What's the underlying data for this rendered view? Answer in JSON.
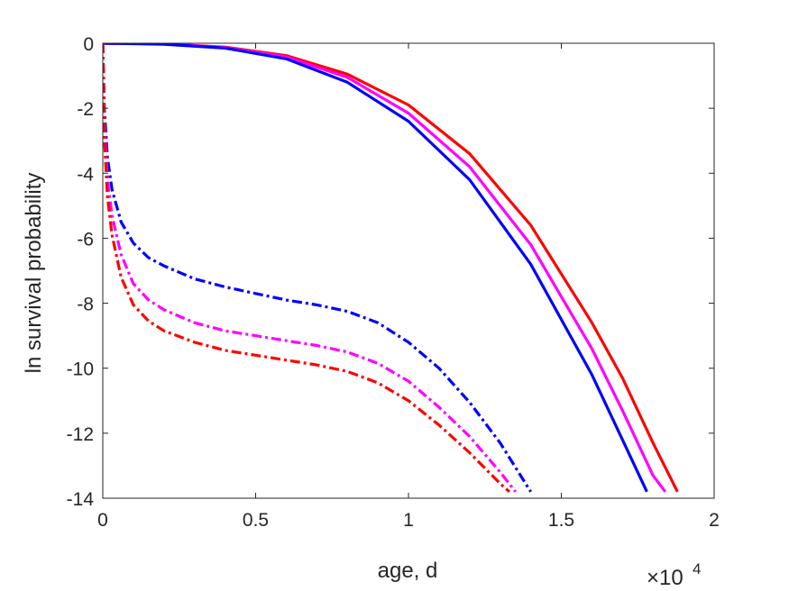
{
  "chart_data": {
    "type": "line",
    "xlabel": "age, d",
    "ylabel": "ln survival probability",
    "x_multiplier": "×10",
    "x_multiplier_exponent": "4",
    "xlim": [
      0,
      20000
    ],
    "ylim": [
      -14,
      0
    ],
    "xticks": [
      0,
      5000,
      10000,
      15000,
      20000
    ],
    "xtick_labels": [
      "0",
      "0.5",
      "1",
      "1.5",
      "2"
    ],
    "yticks": [
      0,
      -2,
      -4,
      -6,
      -8,
      -10,
      -12,
      -14
    ],
    "ytick_labels": [
      "0",
      "-2",
      "-4",
      "-6",
      "-8",
      "-10",
      "-12",
      "-14"
    ],
    "grid": false,
    "series": [
      {
        "color": "#ff0000",
        "style": "solid",
        "x": [
          0,
          2000,
          4000,
          6000,
          8000,
          10000,
          12000,
          14000,
          16000,
          17000,
          18000,
          18800
        ],
        "y": [
          0,
          -0.02,
          -0.12,
          -0.38,
          -0.95,
          -1.9,
          -3.4,
          -5.6,
          -8.6,
          -10.3,
          -12.3,
          -13.8
        ]
      },
      {
        "color": "#ff00ff",
        "style": "solid",
        "x": [
          0,
          2000,
          4000,
          6000,
          8000,
          10000,
          12000,
          14000,
          16000,
          17000,
          18000,
          18400
        ],
        "y": [
          0,
          -0.02,
          -0.13,
          -0.42,
          -1.05,
          -2.15,
          -3.8,
          -6.2,
          -9.4,
          -11.3,
          -13.3,
          -13.8
        ]
      },
      {
        "color": "#0000ff",
        "style": "solid",
        "x": [
          0,
          2000,
          4000,
          6000,
          8000,
          10000,
          12000,
          14000,
          16000,
          17000,
          17800
        ],
        "y": [
          0,
          -0.03,
          -0.15,
          -0.48,
          -1.2,
          -2.4,
          -4.2,
          -6.8,
          -10.2,
          -12.2,
          -13.8
        ]
      },
      {
        "color": "#0000ff",
        "style": "dashdot",
        "x": [
          0,
          50,
          150,
          300,
          600,
          1000,
          1500,
          2000,
          3000,
          4000,
          5000,
          6000,
          7000,
          8000,
          9000,
          10000,
          11000,
          12000,
          13000,
          14000
        ],
        "y": [
          0,
          -2.0,
          -3.5,
          -4.5,
          -5.5,
          -6.15,
          -6.6,
          -6.85,
          -7.25,
          -7.5,
          -7.7,
          -7.9,
          -8.05,
          -8.25,
          -8.6,
          -9.2,
          -10.0,
          -11.05,
          -12.3,
          -13.8
        ]
      },
      {
        "color": "#ff00ff",
        "style": "dashdot",
        "x": [
          0,
          50,
          150,
          300,
          600,
          1000,
          1500,
          2000,
          3000,
          4000,
          5000,
          6000,
          7000,
          8000,
          9000,
          10000,
          11000,
          12000,
          13000,
          13500
        ],
        "y": [
          0,
          -2.5,
          -4.2,
          -5.3,
          -6.5,
          -7.4,
          -7.9,
          -8.2,
          -8.6,
          -8.85,
          -9.0,
          -9.15,
          -9.3,
          -9.5,
          -9.85,
          -10.4,
          -11.2,
          -12.1,
          -13.2,
          -13.8
        ]
      },
      {
        "color": "#ff0000",
        "style": "dashdot",
        "x": [
          0,
          50,
          150,
          300,
          600,
          1000,
          1500,
          2000,
          3000,
          4000,
          5000,
          6000,
          7000,
          8000,
          9000,
          10000,
          11000,
          12000,
          13000,
          13300
        ],
        "y": [
          0,
          -2.9,
          -4.7,
          -5.9,
          -7.2,
          -8.05,
          -8.55,
          -8.85,
          -9.2,
          -9.45,
          -9.6,
          -9.75,
          -9.9,
          -10.1,
          -10.45,
          -11.0,
          -11.75,
          -12.6,
          -13.55,
          -13.8
        ]
      }
    ]
  }
}
